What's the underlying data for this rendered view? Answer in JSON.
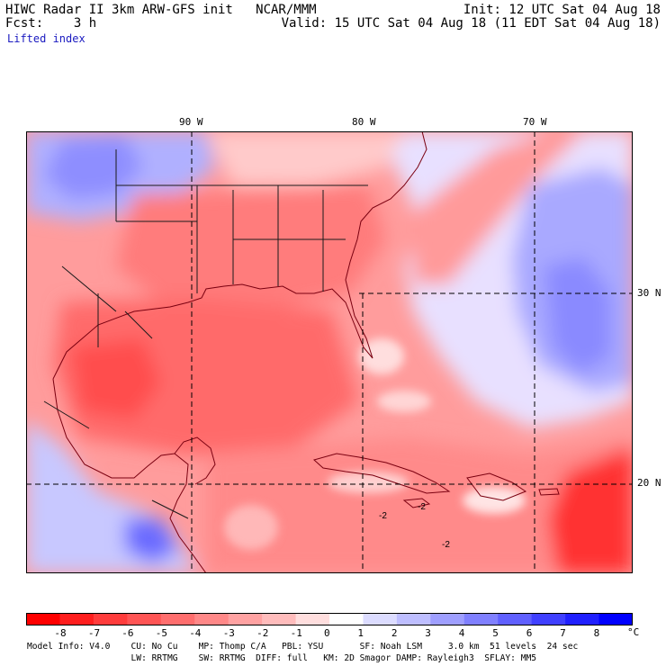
{
  "header": {
    "line1_left": "HIWC Radar II 3km ARW-GFS init   NCAR/MMM",
    "line1_right": "Init: 12 UTC Sat 04 Aug 18",
    "line2_left": "Fcst:    3 h",
    "line2_right": "Valid: 15 UTC Sat 04 Aug 18 (11 EDT Sat 04 Aug 18)",
    "field_name": "Lifted index"
  },
  "map": {
    "lon_labels": [
      "90 W",
      "80 W",
      "70 W"
    ],
    "lat_labels": [
      "30 N",
      "20 N"
    ],
    "contour_labels": [
      "-2",
      "-2",
      "-2"
    ]
  },
  "colorbar": {
    "ticks": [
      "-8",
      "-7",
      "-6",
      "-5",
      "-4",
      "-3",
      "-2",
      "-1",
      "0",
      "1",
      "2",
      "3",
      "4",
      "5",
      "6",
      "7",
      "8"
    ],
    "unit": "°C",
    "colors": [
      "#ff0000",
      "#ff1e1e",
      "#ff3c3c",
      "#ff5555",
      "#ff6e6e",
      "#ff8888",
      "#ffa2a2",
      "#ffbcbc",
      "#ffdede",
      "#ffffff",
      "#dcdcff",
      "#bebeff",
      "#9f9fff",
      "#8080ff",
      "#6060ff",
      "#4040ff",
      "#2020ff",
      "#0000ff"
    ]
  },
  "footer": {
    "line1": "Model Info: V4.0    CU: No Cu    MP: Thomp C/A   PBL: YSU       SF: Noah LSM     3.0 km  51 levels  24 sec",
    "line2": "                    LW: RRTMG    SW: RRTMG  DIFF: full   KM: 2D Smagor DAMP: Rayleigh3  SFLAY: MM5"
  }
}
